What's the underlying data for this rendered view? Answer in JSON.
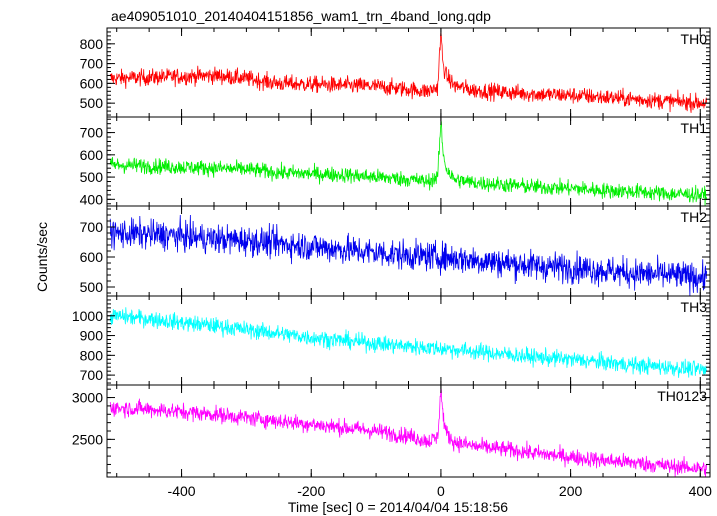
{
  "title": "ae409051010_20140404151856_wam1_trn_4band_long.qdp",
  "xlabel": "Time [sec] 0 = 2014/04/04 15:18:56",
  "ylabel": "Counts/sec",
  "chart_data": [
    {
      "type": "line",
      "name": "TH0",
      "color": "#ff0000",
      "xlim": [
        -515,
        415
      ],
      "ylim": [
        430,
        880
      ],
      "yticks": [
        500,
        600,
        700,
        800
      ],
      "xticks": [
        -400,
        -200,
        0,
        200,
        400
      ],
      "x": [
        -510,
        -450,
        -400,
        -350,
        -300,
        -250,
        -200,
        -150,
        -100,
        -50,
        -20,
        -5,
        0,
        3,
        8,
        20,
        50,
        100,
        150,
        200,
        250,
        300,
        350,
        410
      ],
      "y": [
        625,
        630,
        635,
        640,
        625,
        600,
        595,
        590,
        585,
        570,
        560,
        580,
        860,
        700,
        640,
        590,
        565,
        555,
        545,
        540,
        530,
        520,
        510,
        500
      ],
      "noise": 30
    },
    {
      "type": "line",
      "name": "TH1",
      "color": "#00ee00",
      "xlim": [
        -515,
        415
      ],
      "ylim": [
        370,
        770
      ],
      "yticks": [
        400,
        500,
        600,
        700
      ],
      "xticks": [
        -400,
        -200,
        0,
        200,
        400
      ],
      "x": [
        -510,
        -450,
        -400,
        -350,
        -300,
        -250,
        -200,
        -150,
        -100,
        -50,
        -20,
        -5,
        0,
        3,
        8,
        20,
        50,
        100,
        150,
        200,
        250,
        300,
        350,
        410
      ],
      "y": [
        555,
        550,
        545,
        540,
        535,
        520,
        515,
        510,
        500,
        490,
        480,
        500,
        750,
        620,
        540,
        490,
        475,
        465,
        455,
        450,
        440,
        435,
        425,
        420
      ],
      "noise": 25
    },
    {
      "type": "line",
      "name": "TH2",
      "color": "#0000ee",
      "xlim": [
        -515,
        415
      ],
      "ylim": [
        470,
        770
      ],
      "yticks": [
        500,
        600,
        700
      ],
      "xticks": [
        -400,
        -200,
        0,
        200,
        400
      ],
      "x": [
        -510,
        -450,
        -400,
        -350,
        -300,
        -250,
        -200,
        -150,
        -100,
        -50,
        0,
        50,
        100,
        150,
        200,
        250,
        300,
        350,
        410
      ],
      "y": [
        680,
        675,
        670,
        660,
        655,
        645,
        635,
        625,
        615,
        605,
        600,
        590,
        580,
        570,
        565,
        555,
        545,
        540,
        530
      ],
      "noise": 35
    },
    {
      "type": "line",
      "name": "TH3",
      "color": "#00ffff",
      "xlim": [
        -515,
        415
      ],
      "ylim": [
        650,
        1100
      ],
      "yticks": [
        700,
        800,
        900,
        1000
      ],
      "xticks": [
        -400,
        -200,
        0,
        200,
        400
      ],
      "x": [
        -510,
        -450,
        -400,
        -350,
        -300,
        -250,
        -200,
        -150,
        -100,
        -50,
        0,
        50,
        100,
        150,
        200,
        250,
        300,
        350,
        410
      ],
      "y": [
        1000,
        985,
        965,
        950,
        930,
        910,
        890,
        875,
        860,
        845,
        835,
        820,
        805,
        790,
        780,
        765,
        750,
        740,
        725
      ],
      "noise": 30
    },
    {
      "type": "line",
      "name": "TH0123",
      "color": "#ff00ff",
      "xlim": [
        -515,
        415
      ],
      "ylim": [
        2050,
        3150
      ],
      "yticks": [
        2500,
        3000
      ],
      "xticks": [
        -400,
        -200,
        0,
        200,
        400
      ],
      "x": [
        -510,
        -450,
        -400,
        -350,
        -300,
        -250,
        -200,
        -150,
        -100,
        -50,
        -20,
        -5,
        0,
        3,
        8,
        20,
        50,
        100,
        150,
        200,
        250,
        300,
        350,
        410
      ],
      "y": [
        2880,
        2860,
        2830,
        2800,
        2760,
        2720,
        2680,
        2640,
        2600,
        2540,
        2480,
        2520,
        3120,
        2800,
        2580,
        2470,
        2420,
        2380,
        2330,
        2290,
        2250,
        2220,
        2180,
        2150
      ],
      "noise": 70
    }
  ]
}
